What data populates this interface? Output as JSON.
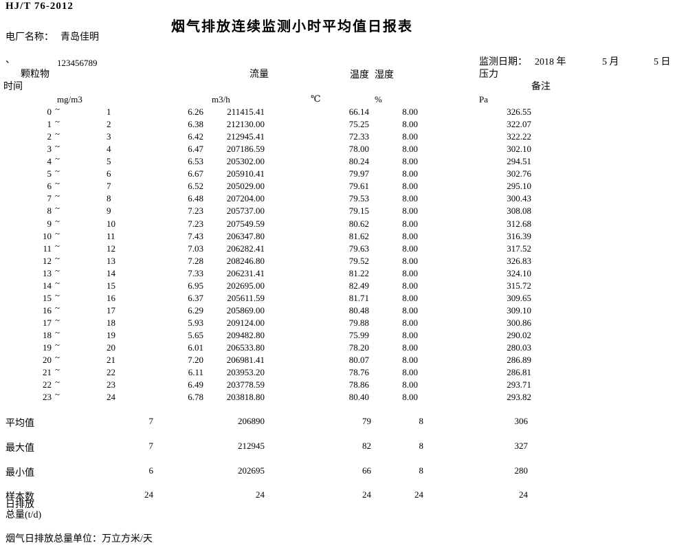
{
  "header": {
    "standard": "HJ/T 76-2012",
    "title": "烟气排放连续监测小时平均值日报表",
    "plant_label": "电厂名称：",
    "plant_name": "青岛佳明",
    "comma_mark": "、",
    "serial": "123456789",
    "date_label": "监测日期：",
    "year": "2018 年",
    "month": "5 月",
    "day": "5 日"
  },
  "columns": {
    "time": "时间",
    "pm": "颗粒物",
    "flow": "流量",
    "temp": "温度",
    "humidity": "湿度",
    "pressure": "压力",
    "remark": "备注",
    "pm_unit": "mg/m3",
    "flow_unit": "m3/h",
    "temp_unit": "℃",
    "humidity_unit": "%",
    "pressure_unit": "Pa"
  },
  "tilde": "~",
  "rows": [
    {
      "start": "0",
      "end": "1",
      "pm": "6.26",
      "flow": "211415.41",
      "temp": "66.14",
      "humidity": "8.00",
      "pressure": "326.55"
    },
    {
      "start": "1",
      "end": "2",
      "pm": "6.38",
      "flow": "212130.00",
      "temp": "75.25",
      "humidity": "8.00",
      "pressure": "322.07"
    },
    {
      "start": "2",
      "end": "3",
      "pm": "6.42",
      "flow": "212945.41",
      "temp": "72.33",
      "humidity": "8.00",
      "pressure": "322.22"
    },
    {
      "start": "3",
      "end": "4",
      "pm": "6.47",
      "flow": "207186.59",
      "temp": "78.00",
      "humidity": "8.00",
      "pressure": "302.10"
    },
    {
      "start": "4",
      "end": "5",
      "pm": "6.53",
      "flow": "205302.00",
      "temp": "80.24",
      "humidity": "8.00",
      "pressure": "294.51"
    },
    {
      "start": "5",
      "end": "6",
      "pm": "6.67",
      "flow": "205910.41",
      "temp": "79.97",
      "humidity": "8.00",
      "pressure": "302.76"
    },
    {
      "start": "6",
      "end": "7",
      "pm": "6.52",
      "flow": "205029.00",
      "temp": "79.61",
      "humidity": "8.00",
      "pressure": "295.10"
    },
    {
      "start": "7",
      "end": "8",
      "pm": "6.48",
      "flow": "207204.00",
      "temp": "79.53",
      "humidity": "8.00",
      "pressure": "300.43"
    },
    {
      "start": "8",
      "end": "9",
      "pm": "7.23",
      "flow": "205737.00",
      "temp": "79.15",
      "humidity": "8.00",
      "pressure": "308.08"
    },
    {
      "start": "9",
      "end": "10",
      "pm": "7.23",
      "flow": "207549.59",
      "temp": "80.62",
      "humidity": "8.00",
      "pressure": "312.68"
    },
    {
      "start": "10",
      "end": "11",
      "pm": "7.43",
      "flow": "206347.80",
      "temp": "81.62",
      "humidity": "8.00",
      "pressure": "316.39"
    },
    {
      "start": "11",
      "end": "12",
      "pm": "7.03",
      "flow": "206282.41",
      "temp": "79.63",
      "humidity": "8.00",
      "pressure": "317.52"
    },
    {
      "start": "12",
      "end": "13",
      "pm": "7.28",
      "flow": "208246.80",
      "temp": "79.52",
      "humidity": "8.00",
      "pressure": "326.83"
    },
    {
      "start": "13",
      "end": "14",
      "pm": "7.33",
      "flow": "206231.41",
      "temp": "81.22",
      "humidity": "8.00",
      "pressure": "324.10"
    },
    {
      "start": "14",
      "end": "15",
      "pm": "6.95",
      "flow": "202695.00",
      "temp": "82.49",
      "humidity": "8.00",
      "pressure": "315.72"
    },
    {
      "start": "15",
      "end": "16",
      "pm": "6.37",
      "flow": "205611.59",
      "temp": "81.71",
      "humidity": "8.00",
      "pressure": "309.65"
    },
    {
      "start": "16",
      "end": "17",
      "pm": "6.29",
      "flow": "205869.00",
      "temp": "80.48",
      "humidity": "8.00",
      "pressure": "309.10"
    },
    {
      "start": "17",
      "end": "18",
      "pm": "5.93",
      "flow": "209124.00",
      "temp": "79.88",
      "humidity": "8.00",
      "pressure": "300.86"
    },
    {
      "start": "18",
      "end": "19",
      "pm": "5.65",
      "flow": "209482.80",
      "temp": "75.99",
      "humidity": "8.00",
      "pressure": "290.02"
    },
    {
      "start": "19",
      "end": "20",
      "pm": "6.01",
      "flow": "206533.80",
      "temp": "78.20",
      "humidity": "8.00",
      "pressure": "280.03"
    },
    {
      "start": "20",
      "end": "21",
      "pm": "7.20",
      "flow": "206981.41",
      "temp": "80.07",
      "humidity": "8.00",
      "pressure": "286.89"
    },
    {
      "start": "21",
      "end": "22",
      "pm": "6.11",
      "flow": "203953.20",
      "temp": "78.76",
      "humidity": "8.00",
      "pressure": "286.81"
    },
    {
      "start": "22",
      "end": "23",
      "pm": "6.49",
      "flow": "203778.59",
      "temp": "78.86",
      "humidity": "8.00",
      "pressure": "293.71"
    },
    {
      "start": "23",
      "end": "24",
      "pm": "6.78",
      "flow": "203818.80",
      "temp": "80.40",
      "humidity": "8.00",
      "pressure": "293.82"
    }
  ],
  "summary": {
    "avg_label": "平均值",
    "avg": [
      "7",
      "206890",
      "79",
      "8",
      "306"
    ],
    "max_label": "最大值",
    "max": [
      "7",
      "212945",
      "82",
      "8",
      "327"
    ],
    "min_label": "最小值",
    "min": [
      "6",
      "202695",
      "66",
      "8",
      "280"
    ],
    "samples_label": "样本数",
    "samples": [
      "24",
      "24",
      "24",
      "24",
      "24"
    ],
    "daily_line1": "日排放",
    "daily_line2": "总量(t/d)"
  },
  "footer": {
    "note": "烟气日排放总量单位：万立方米/天"
  }
}
